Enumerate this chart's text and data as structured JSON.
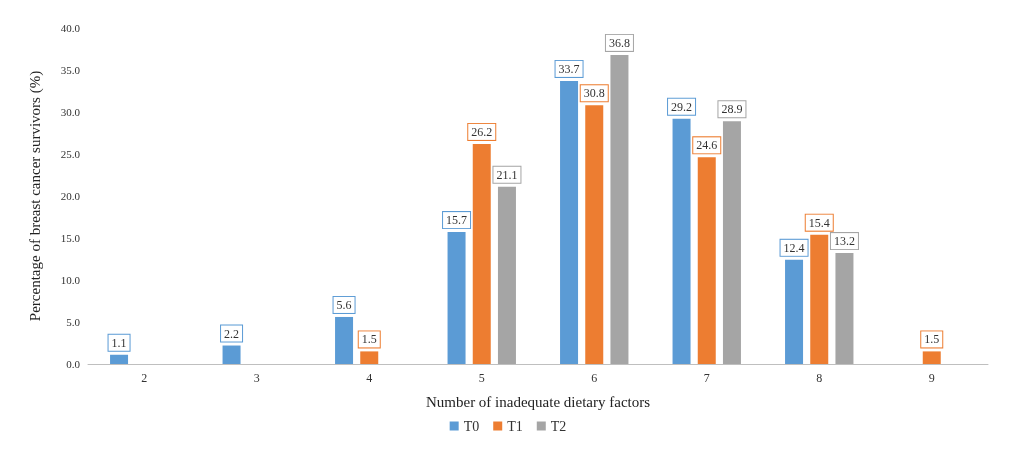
{
  "chart_data": {
    "type": "bar",
    "xlabel": "Number of inadequate dietary factors",
    "ylabel": "Percentage of breast cancer survivors (%)",
    "categories": [
      "2",
      "3",
      "4",
      "5",
      "6",
      "7",
      "8",
      "9"
    ],
    "series": [
      {
        "name": "T0",
        "color": "#5b9bd5",
        "values": [
          1.1,
          2.2,
          5.6,
          15.7,
          33.7,
          29.2,
          12.4,
          null
        ]
      },
      {
        "name": "T1",
        "color": "#ed7d31",
        "values": [
          null,
          null,
          1.5,
          26.2,
          30.8,
          24.6,
          15.4,
          1.5
        ]
      },
      {
        "name": "T2",
        "color": "#a5a5a5",
        "values": [
          null,
          null,
          null,
          21.1,
          36.8,
          28.9,
          13.2,
          null
        ]
      }
    ],
    "ylim": [
      0,
      40
    ],
    "yticks": [
      {
        "value": 0,
        "label": "0.0"
      },
      {
        "value": 5,
        "label": "5.0"
      },
      {
        "value": 10,
        "label": "10.0"
      },
      {
        "value": 15,
        "label": "15.0"
      },
      {
        "value": 20,
        "label": "20.0"
      },
      {
        "value": 25,
        "label": "25.0"
      },
      {
        "value": 30,
        "label": "30.0"
      },
      {
        "value": 35,
        "label": "35.0"
      },
      {
        "value": 40,
        "label": "40.0"
      }
    ],
    "data_labels": true,
    "grid": false,
    "legend": "bottom"
  }
}
